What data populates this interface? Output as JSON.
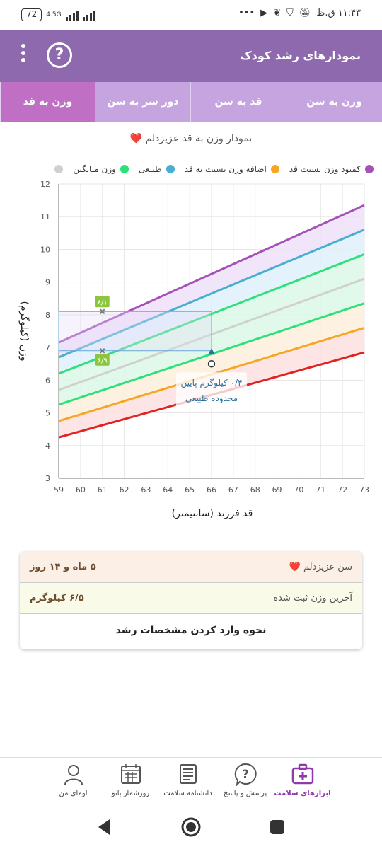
{
  "status_bar": {
    "battery": "72",
    "network": "4.5G",
    "time": "۱۱:۴۳ ق.ظ",
    "dots": "•••"
  },
  "header": {
    "title": "نمودارهای رشد کودک",
    "help_icon": "help-circle-icon",
    "menu_icon": "more-vertical-icon"
  },
  "tabs": [
    {
      "label": "وزن به سن",
      "active": false
    },
    {
      "label": "قد به سن",
      "active": false
    },
    {
      "label": "دور سر به سن",
      "active": false
    },
    {
      "label": "وزن به قد",
      "active": true
    }
  ],
  "chart_title": "نمودار وزن به قد عزیزدلم ❤️",
  "legend": [
    {
      "label": "کمبود وزن نسبت قد",
      "color": "#a552b8"
    },
    {
      "label": "اضافه وزن نسبت به قد",
      "color": "#f5a623"
    },
    {
      "label": "طبیعی",
      "color": "#4aaed0"
    },
    {
      "label": "وزن میانگین",
      "color": "#2ee07a"
    },
    {
      "label": "",
      "color": "#d0d0d0"
    }
  ],
  "chart_data": {
    "type": "line",
    "xlabel": "قد فرزند (سانتیمتر)",
    "ylabel": "وزن (کیلوگرم)",
    "xlim": [
      59,
      73
    ],
    "ylim": [
      3,
      12
    ],
    "x_ticks": [
      "59",
      "60",
      "61",
      "62",
      "63",
      "64",
      "65",
      "66",
      "67",
      "68",
      "69",
      "70",
      "71",
      "72",
      "73"
    ],
    "y_ticks": [
      "3",
      "4",
      "5",
      "6",
      "7",
      "8",
      "9",
      "10",
      "11",
      "12"
    ],
    "x": [
      59,
      73
    ],
    "series": [
      {
        "color": "#a552b8",
        "values": [
          7.15,
          11.35
        ]
      },
      {
        "color": "#4aaed0",
        "values": [
          6.7,
          10.6
        ]
      },
      {
        "color": "#2ee07a",
        "values": [
          6.2,
          9.85
        ]
      },
      {
        "color": "#d0d0d0",
        "values": [
          5.7,
          9.1
        ]
      },
      {
        "color": "#2ee07a",
        "values": [
          5.25,
          8.35
        ]
      },
      {
        "color": "#f5a623",
        "values": [
          4.75,
          7.6
        ]
      },
      {
        "color": "#e02424",
        "values": [
          4.25,
          6.85
        ]
      }
    ],
    "bands": [
      {
        "color": "#efe0f8",
        "from_series": 0,
        "to_series": 1
      },
      {
        "color": "#dff0fa",
        "from_series": 1,
        "to_series": 2
      },
      {
        "color": "#dcf8e6",
        "from_series": 2,
        "to_series": 3
      },
      {
        "color": "#dcf8e6",
        "from_series": 3,
        "to_series": 4
      },
      {
        "color": "#fdf0dc",
        "from_series": 4,
        "to_series": 5
      },
      {
        "color": "#fde0e0",
        "from_series": 5,
        "to_series": 6
      }
    ],
    "point": {
      "x": 66,
      "y": 6.5
    },
    "range_markers": [
      {
        "x": 61,
        "y": 8.1,
        "label": "۸/۱"
      },
      {
        "x": 61,
        "y": 6.9,
        "label": "۶/۹"
      }
    ],
    "annotation": "۰/۴ کیلوگرم پایین محدوده طبیعی"
  },
  "info_card": {
    "age_label": "سن عزیزدلم ❤️",
    "age_value": "۵ ماه و ۱۴ روز",
    "weight_label": "آخرین وزن ثبت شده",
    "weight_value": "۶/۵ کیلوگرم",
    "link_label": "نحوه وارد کردن مشخصات رشد"
  },
  "bottom_nav": [
    {
      "label": "ابزارهای سلامت",
      "icon": "first-aid-kit-icon",
      "active": true
    },
    {
      "label": "پرسش و پاسخ",
      "icon": "question-bubble-icon",
      "active": false
    },
    {
      "label": "دانشنامه سلامت",
      "icon": "book-icon",
      "active": false
    },
    {
      "label": "روزشمار بانو",
      "icon": "calendar-icon",
      "active": false
    },
    {
      "label": "اومای من",
      "icon": "user-avatar-icon",
      "active": false
    }
  ]
}
